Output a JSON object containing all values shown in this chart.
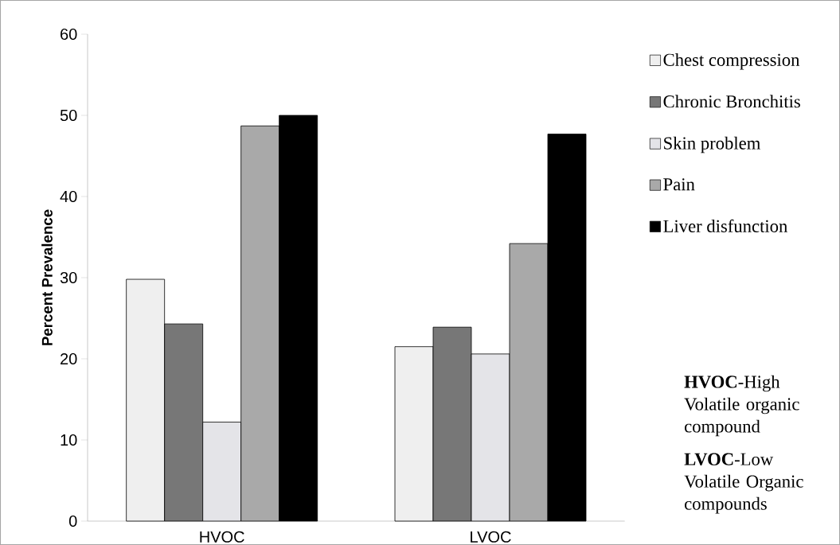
{
  "chart_data": {
    "type": "bar",
    "ylabel": "Percent Prevalence",
    "categories": [
      "HVOC",
      "LVOC"
    ],
    "series": [
      {
        "name": "Chest compression",
        "color": "#efefef",
        "values": [
          29.8,
          21.5
        ]
      },
      {
        "name": "Chronic  Bronchitis",
        "color": "#777777",
        "values": [
          24.3,
          23.9
        ]
      },
      {
        "name": "Skin problem",
        "color": "#e4e4e8",
        "values": [
          12.2,
          20.6
        ]
      },
      {
        "name": "Pain",
        "color": "#a9a9a9",
        "values": [
          48.7,
          34.2
        ]
      },
      {
        "name": "Liver disfunction",
        "color": "#000000",
        "values": [
          50.0,
          47.7
        ]
      }
    ],
    "ylim": [
      0,
      60
    ],
    "yticks": [
      0,
      10,
      20,
      30,
      40,
      50,
      60
    ],
    "legend": "right",
    "grid": false,
    "annotations": [
      "**HVOC**-High Volatile organic compound",
      "**LVOC**-Low Volatile Organic compounds"
    ]
  }
}
